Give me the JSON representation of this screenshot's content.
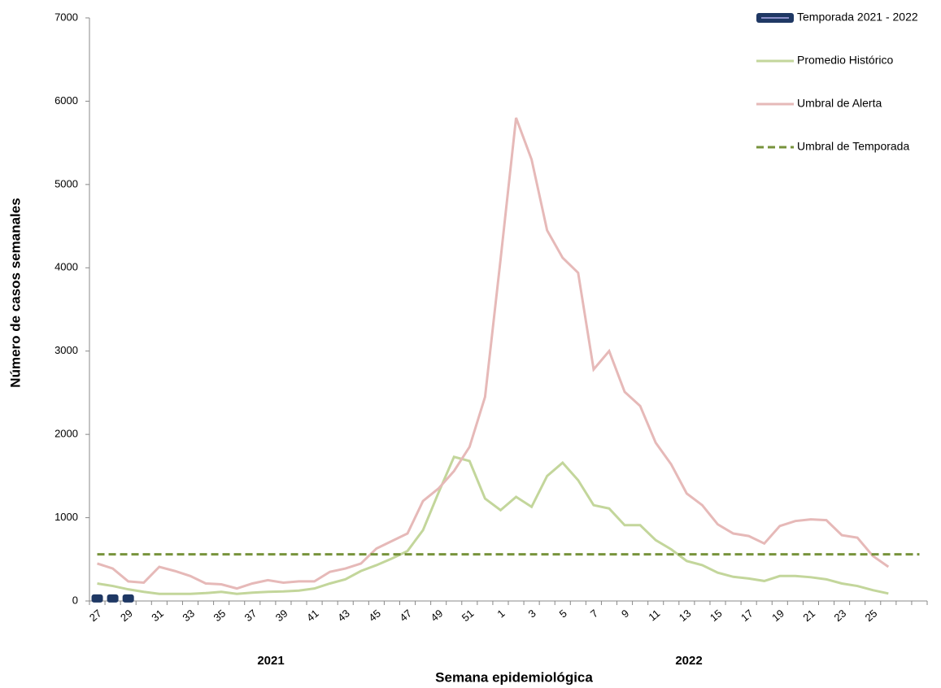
{
  "chart_data": {
    "type": "line",
    "xlabel": "Semana epidemiológica",
    "ylabel": "Número de casos semanales",
    "groups": [
      "2021",
      "2022"
    ],
    "categories": [
      "27",
      null,
      "29",
      null,
      "31",
      null,
      "33",
      null,
      "35",
      null,
      "37",
      null,
      "39",
      null,
      "41",
      null,
      "43",
      null,
      "45",
      null,
      "47",
      null,
      "49",
      null,
      "51",
      null,
      "1",
      null,
      "3",
      null,
      "5",
      null,
      "7",
      null,
      "9",
      null,
      "11",
      null,
      "13",
      null,
      "15",
      null,
      "17",
      null,
      "19",
      null,
      "21",
      null,
      "23",
      null,
      "25",
      null,
      null,
      null
    ],
    "ylim": [
      0,
      7000
    ],
    "yticks": [
      0,
      1000,
      2000,
      3000,
      4000,
      5000,
      6000,
      7000
    ],
    "grid": false,
    "legend": "right",
    "series": [
      {
        "name": "Temporada 2021 - 2022",
        "color": "#1f3864",
        "style": "markers",
        "values": [
          30,
          30,
          30,
          null,
          null,
          null,
          null,
          null,
          null,
          null,
          null,
          null,
          null,
          null,
          null,
          null,
          null,
          null,
          null,
          null,
          null,
          null,
          null,
          null,
          null,
          null,
          null,
          null,
          null,
          null,
          null,
          null,
          null,
          null,
          null,
          null,
          null,
          null,
          null,
          null,
          null,
          null,
          null,
          null,
          null,
          null,
          null,
          null,
          null,
          null,
          null,
          null,
          null,
          null
        ]
      },
      {
        "name": "Promedio Histórico",
        "color": "#c3d69b",
        "style": "solid",
        "values": [
          210,
          180,
          140,
          110,
          85,
          85,
          85,
          95,
          110,
          85,
          100,
          110,
          115,
          125,
          150,
          210,
          260,
          360,
          430,
          510,
          600,
          850,
          1300,
          1730,
          1680,
          1230,
          1090,
          1250,
          1130,
          1500,
          1660,
          1450,
          1150,
          1110,
          910,
          910,
          730,
          620,
          480,
          430,
          340,
          290,
          270,
          240,
          300,
          300,
          285,
          260,
          210,
          180,
          130,
          90,
          null,
          null
        ]
      },
      {
        "name": "Umbral de Alerta",
        "color": "#e6b9b8",
        "style": "solid",
        "values": [
          450,
          390,
          235,
          220,
          410,
          360,
          300,
          210,
          200,
          150,
          210,
          250,
          220,
          235,
          235,
          350,
          390,
          450,
          630,
          720,
          810,
          1200,
          1350,
          1560,
          1850,
          2450,
          4100,
          5800,
          5300,
          4450,
          4120,
          3940,
          2780,
          3000,
          2510,
          2340,
          1900,
          1640,
          1290,
          1150,
          920,
          810,
          780,
          690,
          900,
          960,
          980,
          970,
          790,
          760,
          540,
          410,
          null,
          null
        ]
      },
      {
        "name": "Umbral de Temporada",
        "color": "#77933c",
        "style": "dashed",
        "values": [
          560,
          560,
          560,
          560,
          560,
          560,
          560,
          560,
          560,
          560,
          560,
          560,
          560,
          560,
          560,
          560,
          560,
          560,
          560,
          560,
          560,
          560,
          560,
          560,
          560,
          560,
          560,
          560,
          560,
          560,
          560,
          560,
          560,
          560,
          560,
          560,
          560,
          560,
          560,
          560,
          560,
          560,
          560,
          560,
          560,
          560,
          560,
          560,
          560,
          560,
          560,
          560,
          560,
          560
        ]
      }
    ]
  }
}
